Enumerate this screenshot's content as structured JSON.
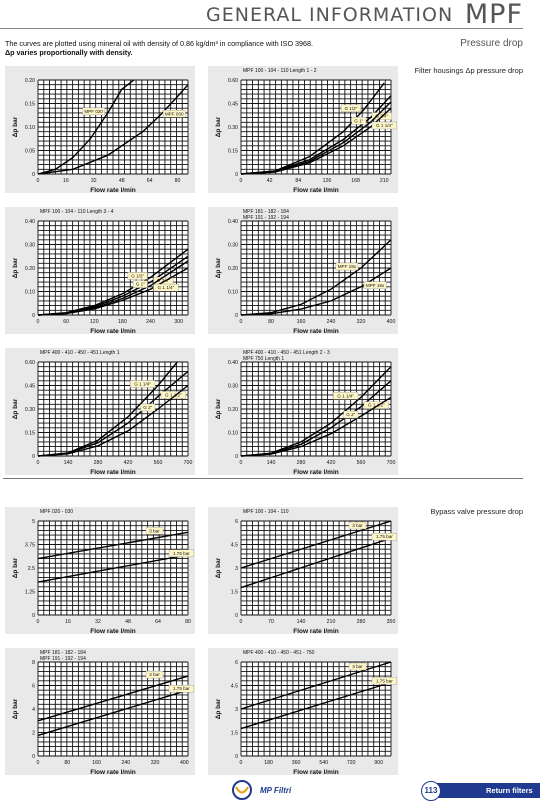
{
  "header": {
    "title": "GENERAL INFORMATION",
    "brand": "MPF"
  },
  "intro": {
    "line1": "The curves are plotted using mineral oil with density of 0.86 kg/dm³ in compliance with ISO 3968.",
    "line2": "Δp varies proportionally with density."
  },
  "subtitle": "Pressure drop",
  "sections": {
    "housings": "Filter housings Δp pressure drop",
    "bypass": "Bypass valve pressure drop"
  },
  "footer": {
    "page": "113",
    "section": "Return filters",
    "logo": "MP Filtri"
  },
  "colors": {
    "accent": "#1f3a8f",
    "panel": "#e9e9e9",
    "grid": "#111111"
  },
  "chart_data": [
    {
      "type": "line",
      "title": "",
      "xlabel": "Flow rate l/min",
      "ylabel": "Δp bar",
      "x_ticks": [
        "0",
        "16",
        "32",
        "48",
        "64",
        "80"
      ],
      "y_ticks": [
        "0",
        "0.05",
        "0.10",
        "0.15",
        "0.20"
      ],
      "xlim": [
        0,
        86
      ],
      "ylim": [
        0,
        0.2
      ],
      "series": [
        {
          "name": "MPF 020",
          "x": [
            0,
            10,
            20,
            30,
            40,
            48,
            55
          ],
          "y": [
            0,
            0.01,
            0.035,
            0.075,
            0.13,
            0.18,
            0.2
          ]
        },
        {
          "name": "MPF 030",
          "x": [
            0,
            20,
            40,
            60,
            70,
            80,
            86
          ],
          "y": [
            0,
            0.01,
            0.04,
            0.09,
            0.125,
            0.165,
            0.19
          ]
        }
      ]
    },
    {
      "type": "line",
      "title": "MPF 100 - 104 - 110 Length 1 - 2",
      "xlabel": "Flow rate l/min",
      "ylabel": "Δp bar",
      "x_ticks": [
        "0",
        "42",
        "84",
        "126",
        "168",
        "210"
      ],
      "y_ticks": [
        "0",
        "0.15",
        "0.30",
        "0.45",
        "0.60"
      ],
      "xlim": [
        0,
        220
      ],
      "ylim": [
        0,
        0.6
      ],
      "series": [
        {
          "name": "G 1/2\"",
          "x": [
            0,
            50,
            100,
            150,
            180,
            210
          ],
          "y": [
            0,
            0.02,
            0.11,
            0.27,
            0.41,
            0.58
          ]
        },
        {
          "name": "G 3/4\"",
          "x": [
            0,
            50,
            100,
            150,
            190,
            220
          ],
          "y": [
            0,
            0.02,
            0.09,
            0.22,
            0.36,
            0.5
          ]
        },
        {
          "name": "G 1\"",
          "x": [
            0,
            50,
            100,
            150,
            190,
            220
          ],
          "y": [
            0,
            0.015,
            0.08,
            0.2,
            0.33,
            0.46
          ]
        },
        {
          "name": "G 1 1/4\"",
          "x": [
            0,
            50,
            100,
            150,
            190,
            220
          ],
          "y": [
            0,
            0.013,
            0.07,
            0.18,
            0.3,
            0.42
          ]
        }
      ]
    },
    {
      "type": "line",
      "title": "MPF 100 - 104 - 110 Length 3 - 4",
      "xlabel": "Flow rate l/min",
      "ylabel": "Δp bar",
      "x_ticks": [
        "0",
        "60",
        "120",
        "180",
        "240",
        "300"
      ],
      "y_ticks": [
        "0",
        "0.10",
        "0.20",
        "0.30",
        "0.40"
      ],
      "xlim": [
        0,
        320
      ],
      "ylim": [
        0,
        0.4
      ],
      "series": [
        {
          "name": "G 1/2\"",
          "x": [
            0,
            60,
            120,
            180,
            240,
            320
          ],
          "y": [
            0,
            0.01,
            0.04,
            0.09,
            0.16,
            0.28
          ]
        },
        {
          "name": "G 3/4\"",
          "x": [
            0,
            60,
            120,
            180,
            240,
            320
          ],
          "y": [
            0,
            0.008,
            0.035,
            0.08,
            0.14,
            0.25
          ]
        },
        {
          "name": "G 1\"",
          "x": [
            0,
            60,
            120,
            180,
            240,
            320
          ],
          "y": [
            0,
            0.007,
            0.03,
            0.07,
            0.125,
            0.23
          ]
        },
        {
          "name": "G 1 1/4\"",
          "x": [
            0,
            60,
            120,
            180,
            240,
            320
          ],
          "y": [
            0,
            0.006,
            0.026,
            0.062,
            0.11,
            0.2
          ]
        }
      ]
    },
    {
      "type": "line",
      "title": "MPF 181 - 182 - 184\nMPF 191 - 192 - 194",
      "xlabel": "Flow rate l/min",
      "ylabel": "Δp bar",
      "x_ticks": [
        "0",
        "80",
        "160",
        "240",
        "320",
        "400"
      ],
      "y_ticks": [
        "0",
        "0.10",
        "0.20",
        "0.30",
        "0.40"
      ],
      "xlim": [
        0,
        400
      ],
      "ylim": [
        0,
        0.4
      ],
      "series": [
        {
          "name": "MPF 18x",
          "x": [
            0,
            80,
            160,
            240,
            320,
            400
          ],
          "y": [
            0,
            0.01,
            0.045,
            0.11,
            0.2,
            0.32
          ]
        },
        {
          "name": "MPF 19x",
          "x": [
            0,
            80,
            160,
            240,
            320,
            400
          ],
          "y": [
            0,
            0.005,
            0.025,
            0.06,
            0.12,
            0.2
          ]
        }
      ]
    },
    {
      "type": "line",
      "title": "MPF 400 - 410 - 450 - 451 Length 1",
      "xlabel": "Flow rate l/min",
      "ylabel": "Δp bar",
      "x_ticks": [
        "0",
        "140",
        "280",
        "420",
        "560",
        "700"
      ],
      "y_ticks": [
        "0",
        "0.15",
        "0.30",
        "0.45",
        "0.60"
      ],
      "xlim": [
        0,
        700
      ],
      "ylim": [
        0,
        0.6
      ],
      "series": [
        {
          "name": "G 1 1/4\"",
          "x": [
            0,
            140,
            280,
            420,
            560,
            650
          ],
          "y": [
            0,
            0.02,
            0.1,
            0.25,
            0.45,
            0.6
          ]
        },
        {
          "name": "G 1 1/2\"",
          "x": [
            0,
            140,
            280,
            420,
            560,
            700
          ],
          "y": [
            0,
            0.018,
            0.085,
            0.21,
            0.38,
            0.54
          ]
        },
        {
          "name": "G 2\"",
          "x": [
            0,
            140,
            280,
            420,
            560,
            700
          ],
          "y": [
            0,
            0.014,
            0.065,
            0.16,
            0.3,
            0.45
          ]
        }
      ]
    },
    {
      "type": "line",
      "title": "MPF 400 - 410 - 450 - 451 Length 2 - 3\nMPF 750 Length 1",
      "xlabel": "Flow rate l/min",
      "ylabel": "Δp bar",
      "x_ticks": [
        "0",
        "140",
        "280",
        "420",
        "560",
        "700"
      ],
      "y_ticks": [
        "0",
        "0.10",
        "0.20",
        "0.30",
        "0.40"
      ],
      "xlim": [
        0,
        700
      ],
      "ylim": [
        0,
        0.4
      ],
      "series": [
        {
          "name": "G 1 1/4\"",
          "x": [
            0,
            140,
            280,
            420,
            560,
            700
          ],
          "y": [
            0,
            0.012,
            0.06,
            0.14,
            0.25,
            0.38
          ]
        },
        {
          "name": "G 1 1/2\"",
          "x": [
            0,
            140,
            280,
            420,
            560,
            700
          ],
          "y": [
            0,
            0.01,
            0.05,
            0.12,
            0.21,
            0.32
          ]
        },
        {
          "name": "G 2\"",
          "x": [
            0,
            140,
            280,
            420,
            560,
            700
          ],
          "y": [
            0,
            0.008,
            0.04,
            0.095,
            0.17,
            0.25
          ]
        }
      ]
    },
    {
      "type": "line",
      "title": "MPF 020 - 030",
      "xlabel": "Flow rate l/min",
      "ylabel": "Δp bar",
      "x_ticks": [
        "0",
        "16",
        "32",
        "48",
        "64",
        "80"
      ],
      "y_ticks": [
        "0",
        "1.25",
        "2.5",
        "3.75",
        "5"
      ],
      "xlim": [
        0,
        80
      ],
      "ylim": [
        0,
        5
      ],
      "series": [
        {
          "name": "3 bar",
          "x": [
            0,
            80
          ],
          "y": [
            3.0,
            4.4
          ]
        },
        {
          "name": "1.75 bar",
          "x": [
            0,
            80
          ],
          "y": [
            1.75,
            3.2
          ]
        }
      ]
    },
    {
      "type": "line",
      "title": "MPF 100 - 104 - 110",
      "xlabel": "Flow rate l/min",
      "ylabel": "Δp bar",
      "x_ticks": [
        "0",
        "70",
        "140",
        "210",
        "280",
        "350"
      ],
      "y_ticks": [
        "0",
        "1.5",
        "3",
        "4.5",
        "6"
      ],
      "xlim": [
        0,
        350
      ],
      "ylim": [
        0,
        6
      ],
      "series": [
        {
          "name": "3 bar",
          "x": [
            0,
            350
          ],
          "y": [
            3.0,
            6.0
          ]
        },
        {
          "name": "1.75 bar",
          "x": [
            0,
            350
          ],
          "y": [
            1.75,
            4.9
          ]
        }
      ]
    },
    {
      "type": "line",
      "title": "MPF 181 - 182 - 184\nMPF 191 - 192 - 194",
      "xlabel": "Flow rate l/min",
      "ylabel": "Δp bar",
      "x_ticks": [
        "0",
        "80",
        "160",
        "240",
        "320",
        "400"
      ],
      "y_ticks": [
        "0",
        "2",
        "4",
        "6",
        "8"
      ],
      "xlim": [
        0,
        410
      ],
      "ylim": [
        0,
        8
      ],
      "series": [
        {
          "name": "3 bar",
          "x": [
            0,
            410
          ],
          "y": [
            3.0,
            6.8
          ]
        },
        {
          "name": "1.75 bar",
          "x": [
            0,
            410
          ],
          "y": [
            1.75,
            5.6
          ]
        }
      ]
    },
    {
      "type": "line",
      "title": "MPF 400 - 410 - 450 - 451 - 750",
      "xlabel": "Flow rate l/min",
      "ylabel": "Δp bar",
      "x_ticks": [
        "0",
        "180",
        "360",
        "540",
        "720",
        "900"
      ],
      "y_ticks": [
        "0",
        "1.5",
        "3",
        "4.5",
        "6"
      ],
      "xlim": [
        0,
        980
      ],
      "ylim": [
        0,
        6
      ],
      "series": [
        {
          "name": "3 bar",
          "x": [
            0,
            980
          ],
          "y": [
            3.0,
            6.0
          ]
        },
        {
          "name": "1.75 bar",
          "x": [
            0,
            980
          ],
          "y": [
            1.75,
            4.7
          ]
        }
      ]
    }
  ]
}
